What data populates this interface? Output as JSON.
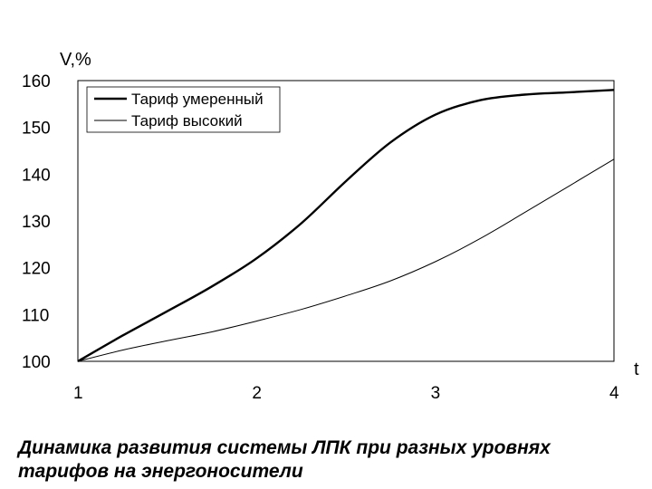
{
  "chart_data": {
    "type": "line",
    "ylabel": "V,%",
    "xlabel": "t",
    "x": [
      1,
      1.25,
      1.5,
      1.75,
      2,
      2.25,
      2.5,
      2.75,
      3,
      3.25,
      3.5,
      3.75,
      4
    ],
    "xticks": [
      1,
      2,
      3,
      4
    ],
    "yticks": [
      100,
      110,
      120,
      130,
      140,
      150,
      160
    ],
    "xlim": [
      1,
      4
    ],
    "ylim": [
      100,
      160
    ],
    "grid": false,
    "legend": "top-left",
    "series": [
      {
        "name": "Тариф умеренный",
        "stroke": "bold",
        "values": [
          100,
          105.5,
          110.7,
          116.0,
          122.0,
          129.5,
          138.5,
          146.8,
          152.7,
          155.8,
          157.0,
          157.5,
          158.0
        ]
      },
      {
        "name": "Тариф высокий",
        "stroke": "thin",
        "values": [
          100,
          102.4,
          104.4,
          106.3,
          108.6,
          111.1,
          114.0,
          117.2,
          121.3,
          126.2,
          131.8,
          137.5,
          143.2
        ]
      }
    ]
  },
  "caption": {
    "line1": "Динамика развития системы ЛПК при разных уровнях",
    "line2": "тарифов на энергоносители"
  }
}
